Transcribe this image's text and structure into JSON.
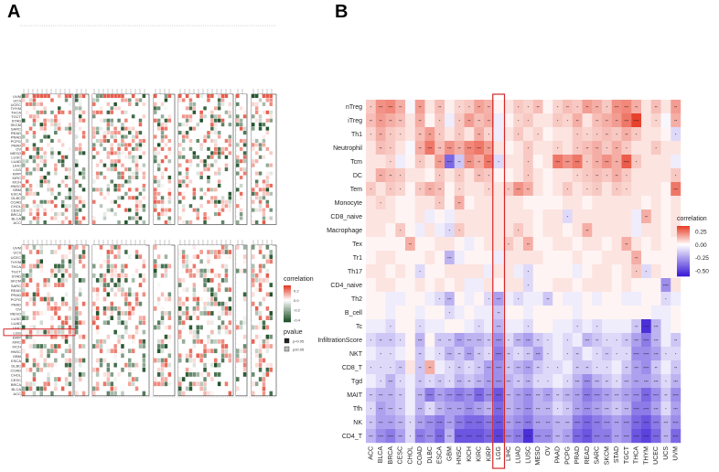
{
  "panels": {
    "a": {
      "label": "A"
    },
    "b": {
      "label": "B"
    }
  },
  "chart_data": [
    {
      "type": "heatmap",
      "panel": "A",
      "rows": [
        "UVM",
        "UCS",
        "UCEC",
        "THYM",
        "THCA",
        "TGCT",
        "STAD",
        "SKCM",
        "SARC",
        "READ",
        "PRAD",
        "PCPG",
        "PAAD",
        "OV",
        "MESO",
        "LUSC",
        "LUAD",
        "LIHC",
        "LGG",
        "KIRP",
        "KIRC",
        "KICH",
        "HNSC",
        "GBM",
        "ESCA",
        "DLBC",
        "COAD",
        "CHOL",
        "CESC",
        "BRCA",
        "BLCA",
        "ACC"
      ],
      "highlight_row": "LGG",
      "legend": {
        "correlation": {
          "title": "correlation",
          "ticks": [
            "0.2",
            "0.0",
            "-0.2",
            "-0.4"
          ]
        },
        "pvalue": {
          "title": "pvalue",
          "items": [
            "p<0.05",
            "p≥0.05"
          ]
        }
      }
    },
    {
      "type": "heatmap",
      "panel": "B",
      "rows": [
        "nTreg",
        "iTreg",
        "Th1",
        "Neutrophil",
        "Tcm",
        "DC",
        "Tem",
        "Monocyte",
        "CD8_naive",
        "Macrophage",
        "Tex",
        "Tr1",
        "Th17",
        "CD4_naive",
        "Th2",
        "B_cell",
        "Tc",
        "InfiltrationScore",
        "NKT",
        "CD8_T",
        "Tgd",
        "MAIT",
        "Tfh",
        "NK",
        "CD4_T"
      ],
      "columns": [
        "ACC",
        "BLCA",
        "BRCA",
        "CESC",
        "CHOL",
        "COAD",
        "DLBC",
        "ESCA",
        "GBM",
        "HNSC",
        "KICH",
        "KIRC",
        "KIRP",
        "LGG",
        "LIHC",
        "LUAD",
        "LUSC",
        "MESO",
        "OV",
        "PAAD",
        "PCPG",
        "PRAD",
        "READ",
        "SARC",
        "SKCM",
        "STAD",
        "TGCT",
        "THCA",
        "THYM",
        "UCEC",
        "UCS",
        "UVM"
      ],
      "highlight_column": "LGG",
      "legend": {
        "title": "correlation",
        "ticks": [
          "0.25",
          "0.00",
          "-0.25",
          "-0.50"
        ],
        "range": [
          -0.6,
          0.35
        ]
      },
      "colors": {
        "positive": "#e8412c",
        "zero": "#ffffff",
        "negative": "#3b1cd6"
      },
      "values": [
        [
          0.1,
          0.2,
          0.22,
          0.15,
          -0.02,
          0.18,
          0.05,
          0.12,
          0.03,
          0.08,
          0.1,
          0.17,
          0.14,
          0.02,
          0.05,
          0.1,
          0.08,
          0.12,
          0.02,
          0.08,
          0.12,
          0.1,
          0.18,
          0.15,
          0.1,
          0.2,
          0.22,
          0.15,
          0.05,
          0.12,
          0.05,
          0.18
        ],
        [
          0.12,
          0.18,
          0.15,
          0.12,
          0.05,
          0.15,
          0.02,
          0.1,
          -0.05,
          0.1,
          0.18,
          0.12,
          0.15,
          -0.05,
          0.02,
          0.08,
          0.1,
          0.05,
          0.05,
          0.1,
          0.08,
          0.15,
          0.05,
          0.12,
          0.15,
          0.18,
          0.25,
          0.35,
          0.05,
          0.08,
          -0.02,
          0.15
        ],
        [
          0.08,
          0.15,
          0.1,
          0.08,
          0.05,
          0.12,
          0.18,
          0.1,
          0.05,
          0.1,
          0.05,
          0.15,
          0.08,
          -0.05,
          0.05,
          0.1,
          0.05,
          0.08,
          0.02,
          0.05,
          0.05,
          0.1,
          0.08,
          0.1,
          0.12,
          0.1,
          0.15,
          0.1,
          0.05,
          0.05,
          0.02,
          -0.1
        ],
        [
          0.05,
          0.12,
          0.1,
          0.05,
          -0.02,
          0.15,
          0.25,
          0.12,
          0.2,
          0.15,
          0.22,
          0.25,
          0.18,
          0.05,
          0.02,
          0.05,
          0.1,
          0.05,
          0.05,
          0.08,
          0.05,
          0.1,
          0.12,
          0.15,
          0.1,
          0.15,
          0.1,
          0.05,
          0.05,
          0.1,
          0.05,
          0.05
        ],
        [
          0.05,
          0.05,
          0.08,
          -0.05,
          0.02,
          0.1,
          0.05,
          0.18,
          -0.4,
          -0.15,
          0.2,
          0.15,
          0.25,
          -0.1,
          0.05,
          0.05,
          0.1,
          0.02,
          0.05,
          0.25,
          0.2,
          0.25,
          0.1,
          0.15,
          0.2,
          0.15,
          0.3,
          0.1,
          0.05,
          0.05,
          0.05,
          -0.05
        ],
        [
          0.05,
          0.15,
          0.12,
          0.1,
          0.05,
          0.05,
          0.02,
          0.1,
          0.05,
          0.1,
          0.05,
          0.12,
          0.1,
          0.02,
          0.02,
          0.05,
          0.1,
          0.05,
          0.02,
          0.05,
          0.05,
          0.08,
          0.1,
          0.12,
          0.1,
          0.15,
          0.1,
          0.05,
          0.05,
          0.05,
          0.05,
          0.1
        ],
        [
          0.1,
          0.05,
          0.1,
          0.08,
          0.02,
          0.1,
          0.15,
          0.12,
          0.02,
          0.08,
          0.05,
          0.05,
          0.08,
          0.05,
          0.1,
          0.2,
          0.15,
          0.05,
          0.02,
          0.05,
          0.1,
          0.05,
          0.08,
          0.1,
          0.05,
          0.1,
          0.08,
          0.05,
          0.05,
          0.05,
          0.02,
          0.25
        ],
        [
          0.05,
          0.08,
          0.05,
          0.02,
          0.02,
          0.05,
          0.05,
          0.1,
          0.02,
          0.15,
          0.02,
          0.05,
          0.05,
          0.05,
          0.05,
          0.05,
          0.02,
          0.02,
          0.02,
          0.02,
          0.05,
          0.05,
          0.02,
          0.05,
          0.05,
          0.05,
          0.05,
          0.05,
          0.02,
          0.05,
          0.02,
          0.05
        ],
        [
          0.05,
          0.05,
          0.05,
          0.02,
          0.02,
          0.05,
          -0.05,
          0.02,
          -0.05,
          0.05,
          0.05,
          0.05,
          0.05,
          0.05,
          0.05,
          0.05,
          0.05,
          0.02,
          0.05,
          0.05,
          -0.1,
          0.05,
          0.05,
          0.05,
          0.05,
          0.05,
          0.05,
          -0.05,
          0.15,
          0.05,
          0.02,
          0.05
        ],
        [
          0.05,
          0.05,
          0.02,
          0.1,
          0.02,
          -0.05,
          0.05,
          -0.05,
          -0.1,
          0.1,
          0.05,
          0.05,
          0.05,
          0.05,
          0.05,
          0.1,
          0.05,
          0.02,
          0.05,
          0.05,
          0.02,
          0.05,
          0.15,
          0.05,
          0.05,
          0.05,
          0.05,
          -0.05,
          0.05,
          0.05,
          0.02,
          0.05
        ],
        [
          0.02,
          0.02,
          0.02,
          0.02,
          0.15,
          0.02,
          0.02,
          0.05,
          0.05,
          0.02,
          -0.05,
          0.02,
          0.05,
          0.05,
          0.1,
          0.05,
          0.15,
          0.02,
          0.02,
          0.05,
          0.05,
          0.02,
          0.05,
          0.05,
          0.02,
          0.05,
          0.15,
          0.05,
          0.02,
          0.05,
          0.02,
          0.02
        ],
        [
          0.02,
          0.05,
          0.05,
          0.02,
          0.02,
          0.02,
          0.05,
          0.02,
          -0.2,
          -0.05,
          0.02,
          0.02,
          0.02,
          -0.05,
          0.05,
          0.05,
          0.05,
          0.05,
          0.02,
          0.02,
          0.02,
          0.05,
          0.02,
          0.02,
          0.05,
          0.05,
          0.05,
          0.15,
          0.02,
          0.02,
          0.02,
          0.02
        ],
        [
          0.05,
          0.05,
          0.02,
          0.05,
          0.02,
          -0.1,
          0.02,
          0.02,
          0.05,
          0.05,
          0.05,
          0.05,
          -0.05,
          0.05,
          0.05,
          -0.05,
          -0.1,
          0.02,
          0.02,
          0.02,
          0.02,
          -0.05,
          0.02,
          0.05,
          0.05,
          0.02,
          0.05,
          0.1,
          -0.1,
          0.05,
          0.02,
          0.02
        ],
        [
          0.02,
          0.05,
          0.05,
          0.02,
          0.02,
          0.05,
          0.02,
          0.05,
          0.02,
          0.05,
          -0.05,
          -0.05,
          0.05,
          0.02,
          0.05,
          0.05,
          -0.1,
          0.02,
          0.02,
          0.05,
          0.05,
          0.02,
          0.05,
          0.05,
          0.05,
          0.02,
          0.05,
          0.02,
          0.02,
          0.02,
          -0.3,
          0.05
        ],
        [
          0.02,
          0.02,
          -0.05,
          -0.05,
          0.02,
          0.02,
          -0.05,
          -0.1,
          -0.2,
          0.02,
          -0.05,
          0.02,
          -0.1,
          -0.25,
          -0.05,
          -0.1,
          -0.05,
          -0.05,
          -0.15,
          0.02,
          -0.05,
          -0.05,
          0.02,
          -0.05,
          0.02,
          0.02,
          -0.05,
          -0.05,
          0.02,
          0.02,
          -0.1,
          -0.05
        ],
        [
          0.02,
          0.02,
          -0.05,
          0.02,
          0.02,
          -0.05,
          0.02,
          0.02,
          -0.1,
          -0.05,
          0.02,
          -0.05,
          -0.05,
          -0.15,
          0.02,
          0.02,
          -0.05,
          0.02,
          0.02,
          0.02,
          0.02,
          -0.05,
          0.02,
          0.02,
          0.02,
          0.02,
          0.02,
          0.02,
          0.02,
          -0.05,
          -0.05,
          0.02
        ],
        [
          -0.05,
          -0.05,
          -0.1,
          0.02,
          0.02,
          -0.1,
          -0.05,
          -0.05,
          0.02,
          0.02,
          -0.05,
          -0.1,
          -0.05,
          -0.2,
          -0.05,
          -0.05,
          -0.1,
          0.02,
          0.02,
          -0.05,
          -0.05,
          -0.1,
          -0.05,
          -0.1,
          -0.05,
          -0.05,
          -0.05,
          -0.15,
          -0.55,
          -0.2,
          -0.05,
          0.02
        ],
        [
          -0.1,
          -0.15,
          -0.15,
          -0.1,
          0.02,
          -0.2,
          0.02,
          -0.15,
          -0.15,
          -0.25,
          -0.2,
          -0.2,
          -0.15,
          -0.3,
          -0.1,
          -0.2,
          -0.25,
          -0.15,
          -0.1,
          -0.05,
          -0.1,
          -0.05,
          -0.2,
          -0.15,
          -0.1,
          -0.1,
          -0.15,
          -0.25,
          -0.35,
          -0.2,
          -0.05,
          -0.15
        ],
        [
          -0.05,
          -0.1,
          -0.1,
          -0.05,
          0.02,
          -0.15,
          -0.05,
          -0.1,
          -0.2,
          -0.15,
          -0.25,
          -0.15,
          -0.1,
          -0.35,
          -0.15,
          -0.1,
          -0.15,
          -0.25,
          -0.1,
          -0.05,
          -0.1,
          -0.15,
          -0.05,
          -0.1,
          -0.15,
          -0.1,
          -0.1,
          -0.3,
          -0.3,
          -0.25,
          -0.1,
          -0.1
        ],
        [
          -0.1,
          -0.1,
          -0.1,
          -0.15,
          0.05,
          -0.15,
          0.15,
          -0.05,
          -0.1,
          -0.15,
          -0.1,
          -0.15,
          -0.25,
          -0.3,
          -0.15,
          -0.2,
          -0.25,
          -0.15,
          -0.1,
          -0.1,
          -0.05,
          -0.15,
          -0.15,
          -0.1,
          -0.1,
          -0.05,
          -0.15,
          -0.25,
          -0.3,
          -0.15,
          -0.05,
          -0.15
        ],
        [
          -0.05,
          -0.1,
          -0.2,
          -0.1,
          -0.05,
          -0.15,
          -0.1,
          -0.15,
          -0.1,
          -0.2,
          -0.15,
          -0.2,
          -0.25,
          -0.3,
          -0.2,
          -0.15,
          -0.2,
          -0.1,
          -0.1,
          -0.05,
          -0.1,
          -0.2,
          -0.3,
          -0.2,
          -0.15,
          -0.1,
          -0.2,
          -0.25,
          -0.25,
          -0.2,
          -0.1,
          -0.2
        ],
        [
          -0.15,
          -0.2,
          -0.2,
          -0.15,
          -0.05,
          -0.2,
          -0.35,
          -0.25,
          -0.3,
          -0.35,
          -0.3,
          -0.4,
          -0.3,
          -0.45,
          -0.2,
          -0.25,
          -0.3,
          -0.2,
          -0.25,
          -0.15,
          -0.2,
          -0.25,
          -0.35,
          -0.3,
          -0.25,
          -0.2,
          -0.25,
          -0.3,
          -0.4,
          -0.3,
          -0.15,
          -0.3
        ],
        [
          -0.1,
          -0.25,
          -0.2,
          -0.15,
          -0.05,
          -0.2,
          -0.1,
          -0.2,
          -0.25,
          -0.25,
          -0.3,
          -0.25,
          -0.2,
          -0.4,
          -0.2,
          -0.25,
          -0.3,
          -0.2,
          -0.2,
          -0.1,
          -0.15,
          -0.25,
          -0.3,
          -0.25,
          -0.2,
          -0.15,
          -0.2,
          -0.35,
          -0.35,
          -0.25,
          -0.1,
          -0.25
        ],
        [
          -0.15,
          -0.25,
          -0.25,
          -0.2,
          -0.1,
          -0.25,
          -0.3,
          -0.35,
          -0.25,
          -0.35,
          -0.4,
          -0.4,
          -0.35,
          -0.45,
          -0.25,
          -0.3,
          -0.35,
          -0.25,
          -0.25,
          -0.2,
          -0.2,
          -0.35,
          -0.4,
          -0.35,
          -0.3,
          -0.25,
          -0.3,
          -0.4,
          -0.45,
          -0.35,
          -0.2,
          -0.3
        ],
        [
          -0.2,
          -0.3,
          -0.35,
          -0.25,
          -0.1,
          -0.35,
          -0.3,
          -0.4,
          -0.2,
          -0.45,
          -0.45,
          -0.45,
          -0.4,
          -0.5,
          -0.3,
          -0.35,
          -0.55,
          -0.3,
          -0.3,
          -0.2,
          -0.25,
          -0.4,
          -0.45,
          -0.35,
          -0.35,
          -0.25,
          -0.3,
          -0.45,
          -0.5,
          -0.4,
          -0.2,
          -0.4
        ]
      ]
    }
  ]
}
